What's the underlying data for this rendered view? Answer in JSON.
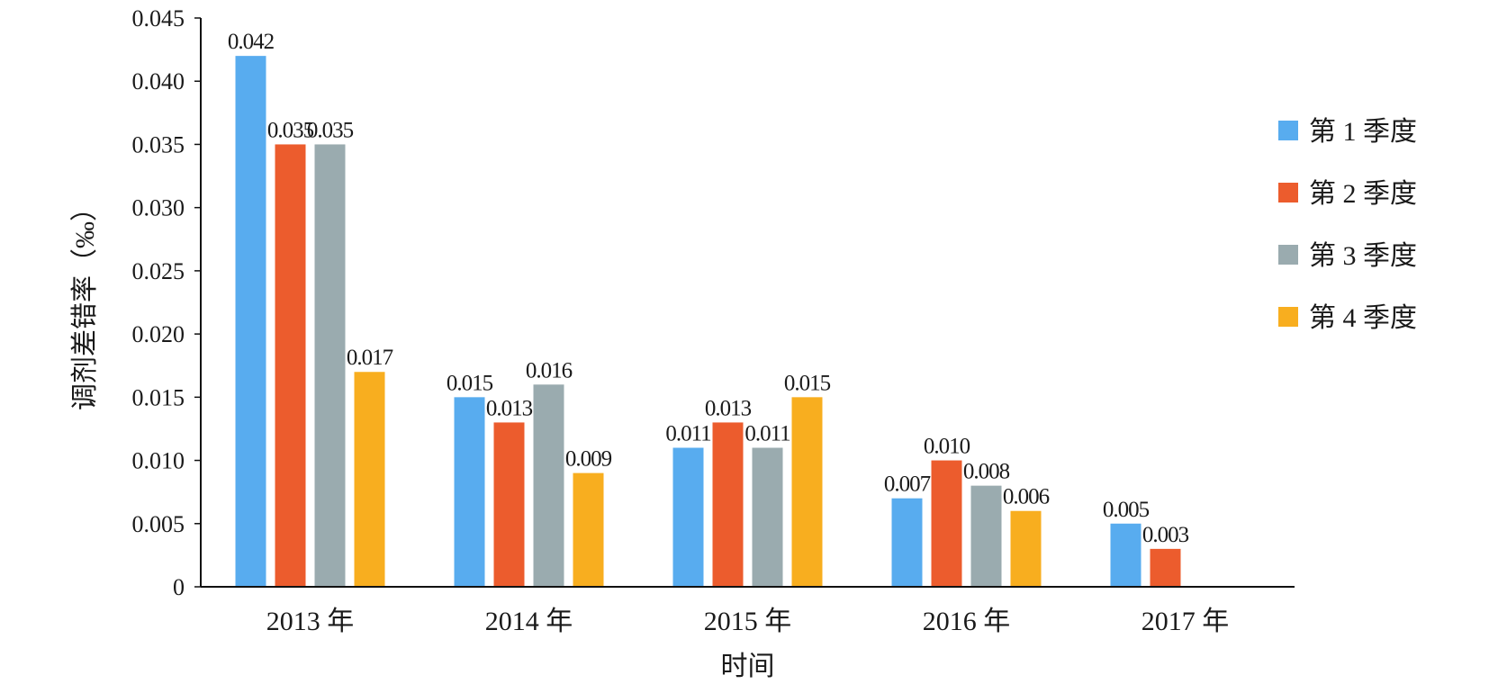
{
  "chart_data": {
    "type": "bar",
    "categories": [
      "2013 年",
      "2014 年",
      "2015 年",
      "2016 年",
      "2017 年"
    ],
    "series": [
      {
        "name": "第 1 季度",
        "color": "#58ACEF",
        "values": [
          0.042,
          0.015,
          0.011,
          0.007,
          0.005
        ],
        "labels": [
          "0.042",
          "0.015",
          "0.011",
          "0.007",
          "0.005"
        ]
      },
      {
        "name": "第 2 季度",
        "color": "#EC5C2D",
        "values": [
          0.035,
          0.013,
          0.013,
          0.01,
          0.003
        ],
        "labels": [
          "0.035",
          "0.013",
          "0.013",
          "0.010",
          "0.003"
        ]
      },
      {
        "name": "第 3 季度",
        "color": "#9AABAF",
        "values": [
          0.035,
          0.016,
          0.011,
          0.008,
          null
        ],
        "labels": [
          "0.035",
          "0.016",
          "0.011",
          "0.008",
          null
        ]
      },
      {
        "name": "第 4 季度",
        "color": "#F8AE1F",
        "values": [
          0.017,
          0.009,
          0.015,
          0.006,
          null
        ],
        "labels": [
          "0.017",
          "0.009",
          "0.015",
          "0.006",
          null
        ]
      }
    ],
    "ylim": [
      0,
      0.045
    ],
    "yticks": [
      "0",
      "0.005",
      "0.010",
      "0.015",
      "0.020",
      "0.025",
      "0.030",
      "0.035",
      "0.040",
      "0.045"
    ],
    "xlabel": "时间",
    "ylabel": "调剂差错率（‰）",
    "grid": false,
    "legend_position": "right"
  }
}
